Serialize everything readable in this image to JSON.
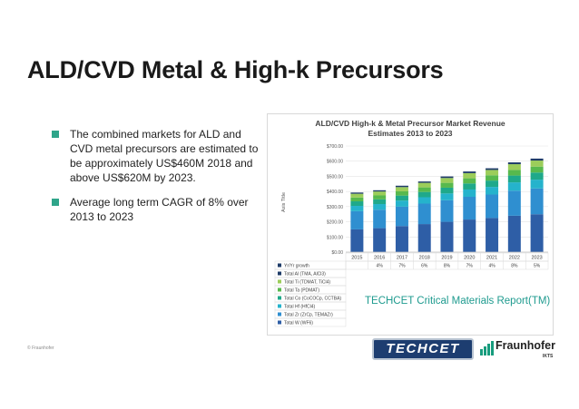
{
  "slide": {
    "title": "ALD/CVD Metal & High-k Precursors",
    "bullets": [
      "The combined markets for ALD and CVD metal precursors are estimated to be approximately US$460M 2018 and above US$620M by 2023.",
      "Average long term CAGR of 8% over 2013 to 2023"
    ],
    "source_note": "TECHCET Critical Materials Report(TM)",
    "footer_copyright": "© Fraunhofer",
    "logos": {
      "techcet": "TECHCET",
      "fraunhofer": "Fraunhofer",
      "fraunhofer_sub": "IKTS"
    }
  },
  "colors": {
    "bullet": "#2fa58a",
    "source_note": "#1f9b8f",
    "techcet": "#1d3d70"
  },
  "chart_data": {
    "type": "bar",
    "stacked": true,
    "title": "ALD/CVD High-k & Metal Precursor Market Revenue Estimates 2013 to 2023",
    "title_lines": [
      "ALD/CVD High-k & Metal Precursor Market Revenue",
      "Estimates 2013 to 2023"
    ],
    "ylabel": "Axis Title",
    "ylim": [
      0,
      700
    ],
    "yticks": [
      "$0.00",
      "$100.00",
      "$200.00",
      "$300.00",
      "$400.00",
      "$500.00",
      "$600.00",
      "$700.00"
    ],
    "categories": [
      "2015",
      "2016",
      "2017",
      "2018",
      "2019",
      "2020",
      "2021",
      "2022",
      "2023"
    ],
    "growth_row_label": "Yr/Yr growth",
    "growth": [
      "",
      "4%",
      "7%",
      "6%",
      "8%",
      "7%",
      "4%",
      "8%",
      "5%"
    ],
    "series": [
      {
        "name": "Total W (WF6)",
        "color": "#2e5ea6",
        "values": [
          150,
          158,
          172,
          185,
          200,
          215,
          225,
          240,
          250
        ]
      },
      {
        "name": "Total Zr (ZrCp, TEMAZr)",
        "color": "#2f8fd0",
        "values": [
          120,
          122,
          128,
          135,
          142,
          150,
          155,
          165,
          170
        ]
      },
      {
        "name": "Total Hf (HfCl4)",
        "color": "#25b3cc",
        "values": [
          35,
          37,
          40,
          42,
          45,
          48,
          50,
          55,
          58
        ]
      },
      {
        "name": "Total Co (CoCOCp, CCTBA)",
        "color": "#1fa98a",
        "values": [
          30,
          31,
          33,
          35,
          38,
          40,
          42,
          45,
          47
        ]
      },
      {
        "name": "Total Ta (PDMAT)",
        "color": "#58b94d",
        "values": [
          25,
          26,
          28,
          30,
          32,
          34,
          35,
          37,
          39
        ]
      },
      {
        "name": "Total Ti (TDMAT, TiCl4)",
        "color": "#9ccd5a",
        "values": [
          25,
          26,
          28,
          30,
          32,
          34,
          35,
          38,
          40
        ]
      },
      {
        "name": "Total Al (TMA, AlCl3)",
        "color": "#1f3c68",
        "values": [
          8,
          8,
          9,
          9,
          10,
          11,
          11,
          12,
          13
        ]
      }
    ],
    "legend_order": [
      {
        "name": "Yr/Yr growth",
        "color": "#1f3c68"
      },
      {
        "name": "Total Al (TMA, AlCl3)",
        "color": "#1f3c68"
      },
      {
        "name": "Total Ti (TDMAT, TiCl4)",
        "color": "#9ccd5a"
      },
      {
        "name": "Total Ta (PDMAT)",
        "color": "#58b94d"
      },
      {
        "name": "Total Co (CoCOCp, CCTBA)",
        "color": "#1fa98a"
      },
      {
        "name": "Total Hf (HfCl4)",
        "color": "#25b3cc"
      },
      {
        "name": "Total Zr (ZrCp, TEMAZr)",
        "color": "#2f8fd0"
      },
      {
        "name": "Total W (WF6)",
        "color": "#2e5ea6"
      }
    ],
    "legend_position": "bottom-left"
  }
}
